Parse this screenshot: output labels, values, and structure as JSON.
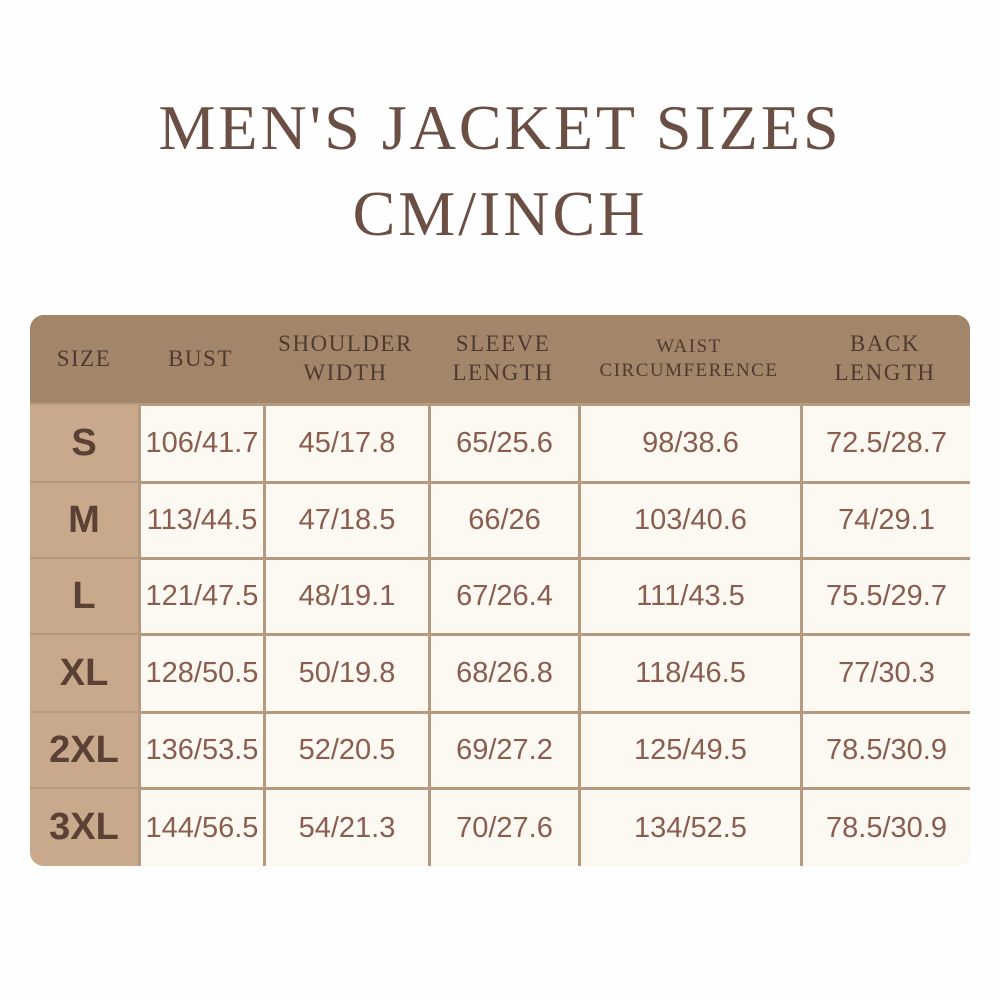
{
  "title": {
    "line1": "MEN'S JACKET SIZES",
    "line2": "CM/INCH"
  },
  "table": {
    "headers": [
      "SIZE",
      "BUST",
      "SHOULDER WIDTH",
      "SLEEVE LENGTH",
      "WAIST CIRCUMFERENCE",
      "BACK LENGTH"
    ],
    "rows": [
      {
        "size": "S",
        "values": [
          "106/41.7",
          "45/17.8",
          "65/25.6",
          "98/38.6",
          "72.5/28.7"
        ]
      },
      {
        "size": "M",
        "values": [
          "113/44.5",
          "47/18.5",
          "66/26",
          "103/40.6",
          "74/29.1"
        ]
      },
      {
        "size": "L",
        "values": [
          "121/47.5",
          "48/19.1",
          "67/26.4",
          "111/43.5",
          "75.5/29.7"
        ]
      },
      {
        "size": "XL",
        "values": [
          "128/50.5",
          "50/19.8",
          "68/26.8",
          "118/46.5",
          "77/30.3"
        ]
      },
      {
        "size": "2XL",
        "values": [
          "136/53.5",
          "52/20.5",
          "69/27.2",
          "125/49.5",
          "78.5/30.9"
        ]
      },
      {
        "size": "3XL",
        "values": [
          "144/56.5",
          "54/21.3",
          "70/27.6",
          "134/52.5",
          "78.5/30.9"
        ]
      }
    ]
  },
  "colors": {
    "header": "#a3866a",
    "size_column": "#c8a98c",
    "cell": "#fcf8f2",
    "value_text": "#8a5e4e",
    "title": "#6b4f44"
  }
}
